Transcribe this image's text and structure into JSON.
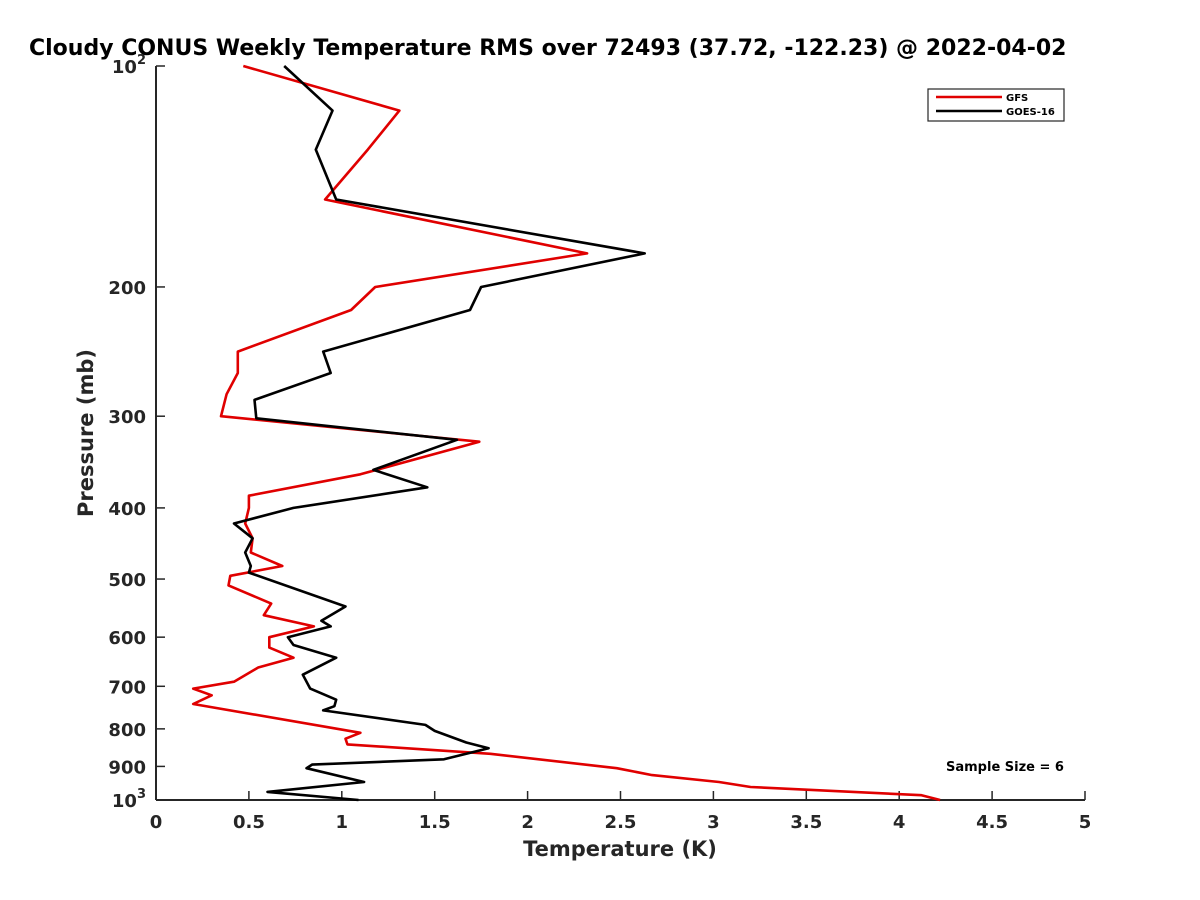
{
  "chart_data": {
    "type": "line",
    "title": "Cloudy CONUS Weekly Temperature RMS over 72493 (37.72, -122.23) @ 2022-04-02",
    "xlabel": "Temperature (K)",
    "ylabel": "Pressure (mb)",
    "xlim": [
      0,
      5
    ],
    "ylim": [
      100,
      1000
    ],
    "y_scale": "log",
    "y_reversed": true,
    "grid": false,
    "legend_position": "top-right",
    "annotation": "Sample Size = 6",
    "x_ticks": [
      {
        "value": 0,
        "label": "0"
      },
      {
        "value": 0.5,
        "label": "0.5"
      },
      {
        "value": 1,
        "label": "1"
      },
      {
        "value": 1.5,
        "label": "1.5"
      },
      {
        "value": 2,
        "label": "2"
      },
      {
        "value": 2.5,
        "label": "2.5"
      },
      {
        "value": 3,
        "label": "3"
      },
      {
        "value": 3.5,
        "label": "3.5"
      },
      {
        "value": 4,
        "label": "4"
      },
      {
        "value": 4.5,
        "label": "4.5"
      },
      {
        "value": 5,
        "label": "5"
      }
    ],
    "y_ticks": [
      {
        "value": 100,
        "base": "10",
        "exp": "2"
      },
      {
        "value": 200,
        "base": "200",
        "exp": ""
      },
      {
        "value": 300,
        "base": "300",
        "exp": ""
      },
      {
        "value": 400,
        "base": "400",
        "exp": ""
      },
      {
        "value": 500,
        "base": "500",
        "exp": ""
      },
      {
        "value": 600,
        "base": "600",
        "exp": ""
      },
      {
        "value": 700,
        "base": "700",
        "exp": ""
      },
      {
        "value": 800,
        "base": "800",
        "exp": ""
      },
      {
        "value": 900,
        "base": "900",
        "exp": ""
      },
      {
        "value": 1000,
        "base": "10",
        "exp": "3"
      }
    ],
    "series": [
      {
        "name": "GFS",
        "color": "#e00000",
        "points": [
          [
            0.47,
            100
          ],
          [
            1.31,
            115
          ],
          [
            1.14,
            130
          ],
          [
            0.91,
            152
          ],
          [
            2.32,
            180
          ],
          [
            1.18,
            200
          ],
          [
            1.05,
            215
          ],
          [
            0.44,
            245
          ],
          [
            0.44,
            262
          ],
          [
            0.38,
            280
          ],
          [
            0.35,
            300
          ],
          [
            1.74,
            325
          ],
          [
            1.1,
            360
          ],
          [
            0.5,
            385
          ],
          [
            0.5,
            400
          ],
          [
            0.48,
            420
          ],
          [
            0.52,
            440
          ],
          [
            0.51,
            460
          ],
          [
            0.68,
            480
          ],
          [
            0.4,
            495
          ],
          [
            0.39,
            510
          ],
          [
            0.62,
            540
          ],
          [
            0.58,
            560
          ],
          [
            0.85,
            580
          ],
          [
            0.61,
            600
          ],
          [
            0.61,
            620
          ],
          [
            0.74,
            640
          ],
          [
            0.55,
            660
          ],
          [
            0.42,
            690
          ],
          [
            0.2,
            705
          ],
          [
            0.3,
            720
          ],
          [
            0.2,
            740
          ],
          [
            1.1,
            810
          ],
          [
            1.02,
            825
          ],
          [
            1.03,
            840
          ],
          [
            1.8,
            865
          ],
          [
            2.48,
            905
          ],
          [
            2.67,
            925
          ],
          [
            3.03,
            945
          ],
          [
            3.2,
            960
          ],
          [
            4.12,
            985
          ],
          [
            4.22,
            1000
          ]
        ]
      },
      {
        "name": "GOES-16",
        "color": "#000000",
        "points": [
          [
            0.69,
            100
          ],
          [
            0.95,
            115
          ],
          [
            0.86,
            130
          ],
          [
            0.97,
            152
          ],
          [
            2.63,
            180
          ],
          [
            1.75,
            200
          ],
          [
            1.69,
            215
          ],
          [
            0.9,
            245
          ],
          [
            0.94,
            262
          ],
          [
            0.53,
            285
          ],
          [
            0.54,
            302
          ],
          [
            1.62,
            323
          ],
          [
            1.17,
            355
          ],
          [
            1.46,
            375
          ],
          [
            0.74,
            400
          ],
          [
            0.42,
            420
          ],
          [
            0.52,
            440
          ],
          [
            0.48,
            460
          ],
          [
            0.51,
            480
          ],
          [
            0.5,
            490
          ],
          [
            1.02,
            545
          ],
          [
            0.89,
            570
          ],
          [
            0.94,
            580
          ],
          [
            0.71,
            600
          ],
          [
            0.74,
            615
          ],
          [
            0.97,
            640
          ],
          [
            0.79,
            675
          ],
          [
            0.83,
            705
          ],
          [
            0.97,
            730
          ],
          [
            0.96,
            745
          ],
          [
            0.9,
            755
          ],
          [
            1.45,
            790
          ],
          [
            1.5,
            805
          ],
          [
            1.67,
            835
          ],
          [
            1.79,
            850
          ],
          [
            1.55,
            880
          ],
          [
            0.84,
            895
          ],
          [
            0.81,
            905
          ],
          [
            1.12,
            945
          ],
          [
            0.6,
            975
          ],
          [
            1.09,
            1000
          ]
        ]
      }
    ]
  }
}
